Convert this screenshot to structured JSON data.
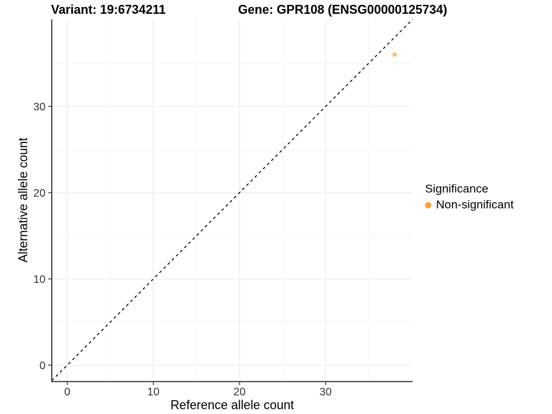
{
  "chart_data": {
    "type": "scatter",
    "title_left": "Variant: 19:6734211",
    "title_right": "Gene: GPR108 (ENSG00000125734)",
    "xlabel": "Reference allele count",
    "ylabel": "Alternative allele count",
    "xlim": [
      -1.8,
      40.1
    ],
    "ylim": [
      -1.9,
      40.1
    ],
    "xticks": [
      0,
      10,
      20,
      30
    ],
    "yticks": [
      0,
      10,
      20,
      30
    ],
    "xticks_minor": [
      5,
      15,
      25,
      35
    ],
    "yticks_minor": [
      5,
      15,
      25,
      35
    ],
    "grid": "major and minor gridlines, very light gray, white panel background",
    "identity_line": {
      "equation": "y = x",
      "style": "dashed",
      "color": "#000000"
    },
    "series": [
      {
        "name": "Non-significant",
        "color": "#FF9E2A",
        "alpha": 0.65,
        "points": [
          {
            "x": 38,
            "y": 36
          }
        ]
      }
    ],
    "legend": {
      "title": "Significance",
      "position": "right",
      "items": [
        {
          "label": "Non-significant",
          "color": "#FF9E2A"
        }
      ]
    },
    "colors": {
      "axis_line": "#474747",
      "tick_text": "#333333",
      "grid_major": "#e9e9e9",
      "grid_minor": "#f4f4f4"
    }
  }
}
